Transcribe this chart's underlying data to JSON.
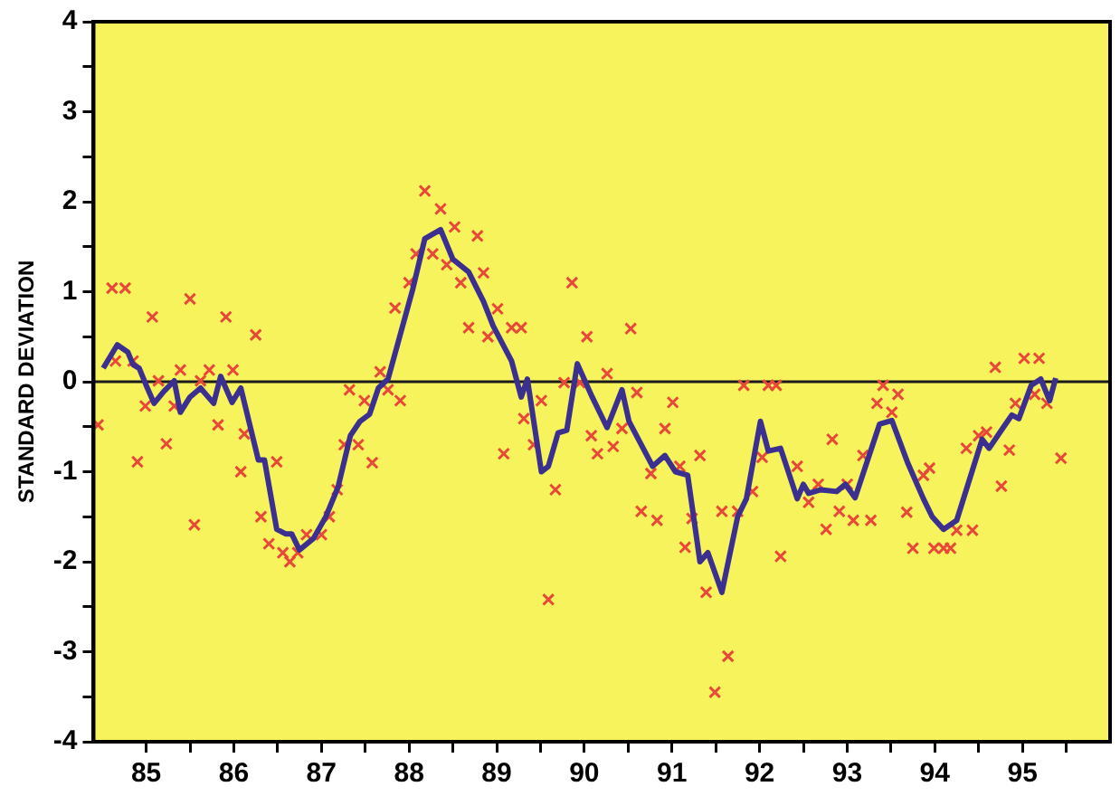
{
  "chart_data": {
    "type": "line",
    "ylabel": "STANDARD DEVIATION",
    "xlim": [
      84.4,
      96
    ],
    "xticks": [
      85,
      {
        "value": 85.5,
        "label": null
      },
      86,
      {
        "value": 86.5,
        "label": null
      },
      87,
      {
        "value": 87.5,
        "label": null
      },
      88,
      {
        "value": 88.5,
        "label": null
      },
      89,
      {
        "value": 89.5,
        "label": null
      },
      90,
      {
        "value": 90.5,
        "label": null
      },
      91,
      {
        "value": 91.5,
        "label": null
      },
      92,
      {
        "value": 92.5,
        "label": null
      },
      93,
      {
        "value": 93.5,
        "label": null
      },
      94,
      {
        "value": 94.5,
        "label": null
      },
      95,
      {
        "value": 95.5,
        "label": null
      }
    ],
    "ylim": [
      -4,
      4
    ],
    "yticks": [
      -4,
      {
        "value": -3.5,
        "label": null
      },
      -3,
      {
        "value": -2.5,
        "label": null
      },
      -2,
      {
        "value": -1.5,
        "label": null
      },
      -1,
      {
        "value": -0.5,
        "label": null
      },
      0,
      {
        "value": 0.5,
        "label": null
      },
      1,
      {
        "value": 1.5,
        "label": null
      },
      2,
      {
        "value": 2.5,
        "label": null
      },
      3,
      {
        "value": 3.5,
        "label": null
      },
      4
    ],
    "legend": false,
    "ref_lines": [
      {
        "axis": "y",
        "value": 0,
        "color": "#1a1a1a"
      }
    ],
    "series": [
      {
        "color": "#3b2f8f",
        "marker": "none",
        "line_style": "solid",
        "x": [
          84.51,
          84.67,
          84.79,
          84.85,
          84.92,
          85.0,
          85.09,
          85.2,
          85.32,
          85.39,
          85.5,
          85.62,
          85.77,
          85.85,
          85.98,
          86.08,
          86.28,
          86.35,
          86.49,
          86.59,
          86.66,
          86.75,
          86.91,
          87.05,
          87.19,
          87.33,
          87.44,
          87.55,
          87.65,
          87.76,
          88.04,
          88.18,
          88.36,
          88.5,
          88.68,
          88.85,
          88.96,
          89.17,
          89.28,
          89.35,
          89.51,
          89.59,
          89.7,
          89.8,
          89.92,
          90.09,
          90.26,
          90.43,
          90.51,
          90.65,
          90.78,
          90.92,
          91.04,
          91.18,
          91.32,
          91.41,
          91.57,
          91.75,
          91.85,
          92.01,
          92.1,
          92.24,
          92.43,
          92.5,
          92.56,
          92.7,
          92.88,
          92.98,
          93.09,
          93.37,
          93.51,
          93.69,
          93.87,
          93.97,
          94.1,
          94.25,
          94.54,
          94.62,
          94.78,
          94.88,
          94.96,
          95.1,
          95.21,
          95.31,
          95.38
        ],
        "values": [
          0.15,
          0.41,
          0.33,
          0.19,
          0.15,
          -0.04,
          -0.24,
          -0.11,
          0.01,
          -0.34,
          -0.17,
          -0.07,
          -0.24,
          0.06,
          -0.23,
          -0.07,
          -0.87,
          -0.87,
          -1.64,
          -1.69,
          -1.69,
          -1.87,
          -1.74,
          -1.5,
          -1.17,
          -0.6,
          -0.44,
          -0.36,
          -0.07,
          0.03,
          1.02,
          1.59,
          1.69,
          1.36,
          1.22,
          0.89,
          0.62,
          0.23,
          -0.17,
          0.03,
          -1.0,
          -0.94,
          -0.57,
          -0.54,
          0.2,
          -0.17,
          -0.51,
          -0.09,
          -0.44,
          -0.7,
          -0.94,
          -0.82,
          -1.0,
          -1.04,
          -2.0,
          -1.9,
          -2.34,
          -1.5,
          -1.3,
          -0.44,
          -0.77,
          -0.74,
          -1.3,
          -1.14,
          -1.24,
          -1.2,
          -1.22,
          -1.14,
          -1.29,
          -0.47,
          -0.43,
          -0.9,
          -1.3,
          -1.5,
          -1.64,
          -1.54,
          -0.64,
          -0.74,
          -0.51,
          -0.37,
          -0.41,
          -0.04,
          0.03,
          -0.21,
          0.04
        ]
      },
      {
        "type": "scatter",
        "color": "#e8483a",
        "marker": "cross",
        "x": [
          84.45,
          84.61,
          84.76,
          84.65,
          84.85,
          84.9,
          84.99,
          85.07,
          85.14,
          85.23,
          85.32,
          85.39,
          85.5,
          85.55,
          85.62,
          85.72,
          85.82,
          85.91,
          85.99,
          86.08,
          86.12,
          86.25,
          86.31,
          86.4,
          86.49,
          86.56,
          86.64,
          86.73,
          86.83,
          87.0,
          87.09,
          87.18,
          87.26,
          87.32,
          87.42,
          87.49,
          87.58,
          87.67,
          87.76,
          87.84,
          87.9,
          88.0,
          88.08,
          88.18,
          88.27,
          88.36,
          88.43,
          88.52,
          88.59,
          88.68,
          88.78,
          88.85,
          88.9,
          89.01,
          89.08,
          89.17,
          89.28,
          89.31,
          89.42,
          89.51,
          89.59,
          89.67,
          89.77,
          89.86,
          89.95,
          90.03,
          90.08,
          90.15,
          90.26,
          90.33,
          90.43,
          90.53,
          90.6,
          90.65,
          90.76,
          90.83,
          90.92,
          91.01,
          91.09,
          91.15,
          91.23,
          91.32,
          91.39,
          91.49,
          91.57,
          91.64,
          91.75,
          91.82,
          91.92,
          92.03,
          92.1,
          92.19,
          92.24,
          92.43,
          92.56,
          92.67,
          92.76,
          92.83,
          92.91,
          93.0,
          93.07,
          93.18,
          93.27,
          93.34,
          93.41,
          93.51,
          93.58,
          93.68,
          93.75,
          93.87,
          93.94,
          93.99,
          94.1,
          94.18,
          94.25,
          94.36,
          94.43,
          94.5,
          94.59,
          94.69,
          94.76,
          94.85,
          94.92,
          95.02,
          95.14,
          95.19,
          95.28,
          95.44
        ],
        "values": [
          -0.48,
          1.04,
          1.04,
          0.23,
          0.23,
          -0.89,
          -0.27,
          0.72,
          0.01,
          -0.69,
          -0.27,
          0.13,
          0.92,
          -1.59,
          0.01,
          0.13,
          -0.48,
          0.72,
          0.13,
          -1.0,
          -0.58,
          0.52,
          -1.5,
          -1.8,
          -0.89,
          -1.9,
          -2.0,
          -1.9,
          -1.7,
          -1.7,
          -1.5,
          -1.2,
          -0.7,
          -0.09,
          -0.7,
          -0.21,
          -0.9,
          0.11,
          -0.09,
          0.82,
          -0.21,
          1.1,
          1.42,
          2.12,
          1.42,
          1.92,
          1.3,
          1.72,
          1.1,
          0.6,
          1.62,
          1.21,
          0.5,
          0.81,
          -0.8,
          0.6,
          0.6,
          -0.41,
          -0.7,
          -0.21,
          -2.42,
          -1.2,
          -0.01,
          1.1,
          -0.01,
          0.5,
          -0.6,
          -0.8,
          0.09,
          -0.72,
          -0.52,
          0.59,
          -0.12,
          -1.44,
          -1.02,
          -1.54,
          -0.52,
          -0.23,
          -0.94,
          -1.84,
          -1.52,
          -0.82,
          -2.34,
          -3.45,
          -1.44,
          -3.05,
          -1.44,
          -0.04,
          -1.22,
          -0.84,
          -0.04,
          -0.04,
          -1.94,
          -0.94,
          -1.34,
          -1.14,
          -1.64,
          -0.64,
          -1.44,
          -1.14,
          -1.54,
          -0.82,
          -1.54,
          -0.24,
          -0.04,
          -0.34,
          -0.14,
          -1.45,
          -1.85,
          -1.04,
          -0.96,
          -1.85,
          -1.85,
          -1.85,
          -1.65,
          -0.74,
          -1.65,
          -0.6,
          -0.56,
          0.16,
          -1.16,
          -0.76,
          -0.24,
          0.26,
          -0.14,
          0.26,
          -0.24,
          -0.85
        ]
      }
    ]
  }
}
